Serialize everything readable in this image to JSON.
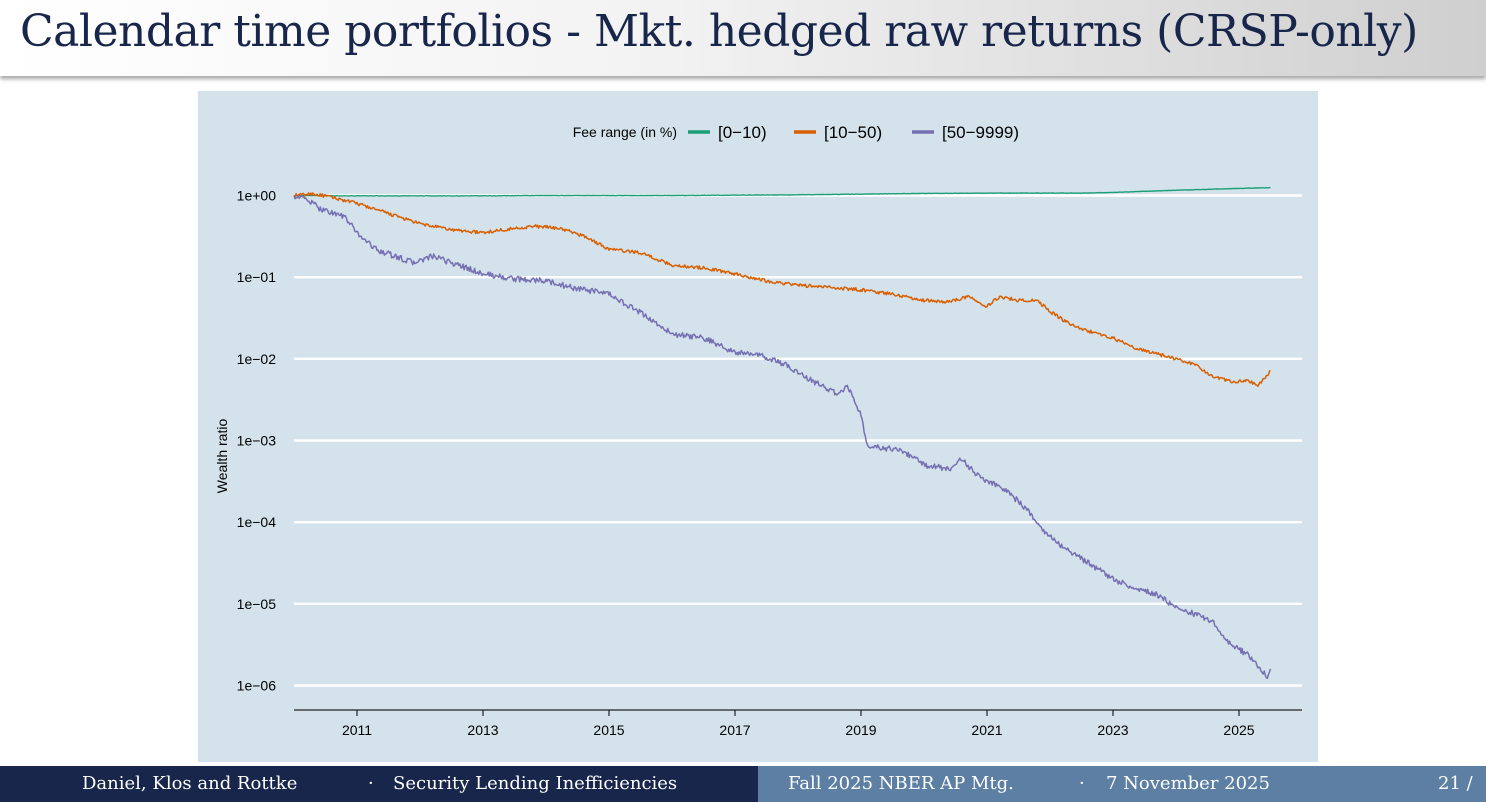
{
  "slide": {
    "title": "Calendar time portfolios - Mkt. hedged raw returns (CRSP-only)"
  },
  "footer": {
    "authors": "Daniel, Klos and Rottke",
    "separator": "·",
    "topic": "Security Lending Inefficiencies",
    "event": "Fall 2025 NBER AP Mtg.",
    "date": "7 November 2025",
    "page": "21 /"
  },
  "colors": {
    "panel_bg": "#d4e3eb",
    "grid": "#ffffff",
    "series_low": "#1b9e77",
    "series_mid": "#d95f02",
    "series_high": "#7570b3",
    "title_text": "#17264a",
    "footer_dark": "#17264a",
    "footer_light": "#5d7fa3"
  },
  "chart_data": {
    "type": "line",
    "title": "",
    "xlabel": "",
    "ylabel": "Wealth ratio",
    "y_scale": "log10",
    "ylim_log10": [
      -6.3,
      0.3
    ],
    "xlim": [
      2010.0,
      2026.0
    ],
    "x_ticks": [
      2011,
      2013,
      2015,
      2017,
      2019,
      2021,
      2023,
      2025
    ],
    "x_tick_labels": [
      "2011",
      "2013",
      "2015",
      "2017",
      "2019",
      "2021",
      "2023",
      "2025"
    ],
    "y_ticks_log10": [
      0,
      -1,
      -2,
      -3,
      -4,
      -5,
      -6
    ],
    "y_tick_labels": [
      "1e+00",
      "1e−01",
      "1e−02",
      "1e−03",
      "1e−04",
      "1e−05",
      "1e−06"
    ],
    "grid": "horizontal",
    "legend": {
      "title": "Fee range (in %)",
      "position": "top",
      "entries": [
        "[0−10)",
        "[10−50)",
        "[50−9999)"
      ]
    },
    "series": [
      {
        "name": "[0−10)",
        "color": "#1b9e77",
        "x": [
          2010.0,
          2011.0,
          2012.0,
          2013.0,
          2014.0,
          2015.0,
          2016.0,
          2017.0,
          2018.0,
          2019.0,
          2020.0,
          2021.0,
          2022.0,
          2022.5,
          2023.0,
          2024.0,
          2025.0,
          2025.5
        ],
        "y": [
          1.0,
          0.99,
          0.99,
          0.99,
          1.0,
          1.0,
          1.0,
          1.01,
          1.02,
          1.04,
          1.06,
          1.07,
          1.07,
          1.07,
          1.09,
          1.16,
          1.22,
          1.25
        ]
      },
      {
        "name": "[10−50)",
        "color": "#d95f02",
        "x": [
          2010.0,
          2010.3,
          2010.6,
          2011.0,
          2011.5,
          2012.0,
          2012.5,
          2013.0,
          2013.3,
          2013.8,
          2014.2,
          2014.6,
          2015.0,
          2015.5,
          2016.0,
          2016.5,
          2017.0,
          2017.5,
          2018.0,
          2018.5,
          2019.0,
          2019.5,
          2020.0,
          2020.4,
          2020.7,
          2021.0,
          2021.2,
          2021.5,
          2021.8,
          2022.0,
          2022.3,
          2022.6,
          2023.0,
          2023.3,
          2023.6,
          2024.0,
          2024.3,
          2024.6,
          2024.9,
          2025.1,
          2025.3,
          2025.45,
          2025.5
        ],
        "y": [
          1.0,
          1.05,
          0.95,
          0.8,
          0.6,
          0.45,
          0.38,
          0.35,
          0.38,
          0.42,
          0.4,
          0.32,
          0.22,
          0.2,
          0.14,
          0.13,
          0.11,
          0.09,
          0.08,
          0.075,
          0.07,
          0.062,
          0.052,
          0.05,
          0.058,
          0.044,
          0.058,
          0.052,
          0.052,
          0.038,
          0.027,
          0.022,
          0.018,
          0.014,
          0.012,
          0.01,
          0.0085,
          0.006,
          0.0052,
          0.0055,
          0.0048,
          0.0062,
          0.0072
        ]
      },
      {
        "name": "[50−9999)",
        "color": "#7570b3",
        "x": [
          2010.0,
          2010.2,
          2010.4,
          2010.6,
          2010.8,
          2011.0,
          2011.3,
          2011.6,
          2011.9,
          2012.2,
          2012.5,
          2013.0,
          2013.5,
          2014.0,
          2014.5,
          2015.0,
          2015.3,
          2015.6,
          2016.0,
          2016.5,
          2017.0,
          2017.4,
          2017.8,
          2018.2,
          2018.6,
          2018.8,
          2019.0,
          2019.1,
          2019.3,
          2019.6,
          2020.0,
          2020.4,
          2020.6,
          2020.8,
          2021.0,
          2021.3,
          2021.6,
          2021.9,
          2022.2,
          2022.6,
          2023.0,
          2023.3,
          2023.7,
          2024.0,
          2024.3,
          2024.6,
          2024.8,
          2025.0,
          2025.2,
          2025.35,
          2025.45,
          2025.5
        ],
        "y": [
          1.0,
          0.9,
          0.7,
          0.62,
          0.55,
          0.35,
          0.22,
          0.18,
          0.15,
          0.18,
          0.15,
          0.11,
          0.095,
          0.09,
          0.072,
          0.062,
          0.045,
          0.033,
          0.02,
          0.018,
          0.012,
          0.011,
          0.0085,
          0.0055,
          0.0038,
          0.0045,
          0.002,
          0.0009,
          0.0008,
          0.0008,
          0.0005,
          0.00045,
          0.0006,
          0.0004,
          0.00032,
          0.00025,
          0.00015,
          8e-05,
          5e-05,
          3.2e-05,
          2e-05,
          1.6e-05,
          1.3e-05,
          9e-06,
          7.5e-06,
          6e-06,
          3.5e-06,
          2.8e-06,
          2.2e-06,
          1.5e-06,
          1.3e-06,
          1.6e-06
        ]
      }
    ]
  }
}
